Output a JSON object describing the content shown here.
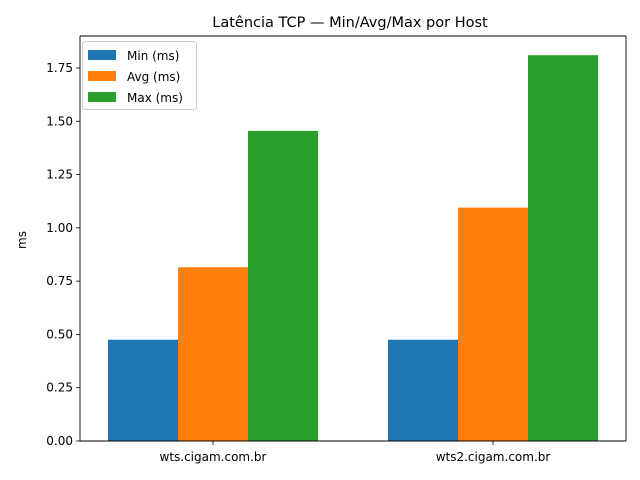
{
  "chart_data": {
    "type": "bar",
    "title": "Latência TCP — Min/Avg/Max por Host",
    "xlabel": "",
    "ylabel": "ms",
    "categories": [
      "wts.cigam.com.br",
      "wts2.cigam.com.br"
    ],
    "series": [
      {
        "name": "Min (ms)",
        "color": "#1f77b4",
        "values": [
          0.475,
          0.475
        ]
      },
      {
        "name": "Avg (ms)",
        "color": "#ff7f0e",
        "values": [
          0.815,
          1.095
        ]
      },
      {
        "name": "Max (ms)",
        "color": "#2ca02c",
        "values": [
          1.455,
          1.81
        ]
      }
    ],
    "ylim": [
      0,
      1.9
    ],
    "yticks": [
      "0.00",
      "0.25",
      "0.50",
      "0.75",
      "1.00",
      "1.25",
      "1.50",
      "1.75"
    ],
    "grid": false,
    "legend_position": "top-left"
  }
}
